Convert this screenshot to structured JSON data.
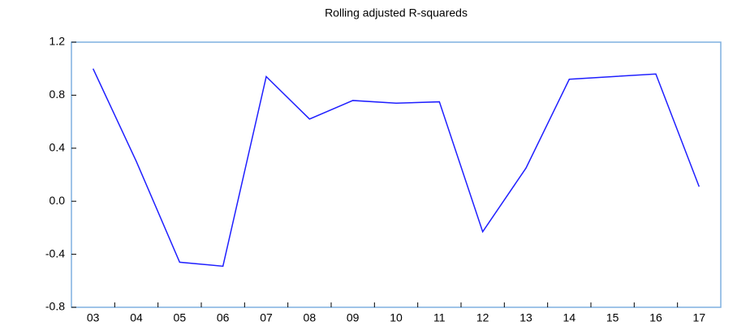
{
  "chart_data": {
    "type": "line",
    "title": "Rolling adjusted R-squareds",
    "categories": [
      "03",
      "04",
      "05",
      "06",
      "07",
      "08",
      "09",
      "10",
      "11",
      "12",
      "13",
      "14",
      "15",
      "16",
      "17"
    ],
    "values": [
      1.0,
      0.3,
      -0.46,
      -0.49,
      0.94,
      0.62,
      0.76,
      0.74,
      0.75,
      -0.23,
      0.25,
      0.92,
      0.94,
      0.96,
      0.11
    ],
    "color": "#1f1fff",
    "ylim": [
      -0.8,
      1.2
    ],
    "yticks": [
      -0.8,
      -0.4,
      {
        "value": 0,
        "label": "0.0"
      },
      0.4,
      0.8,
      1.2
    ]
  }
}
